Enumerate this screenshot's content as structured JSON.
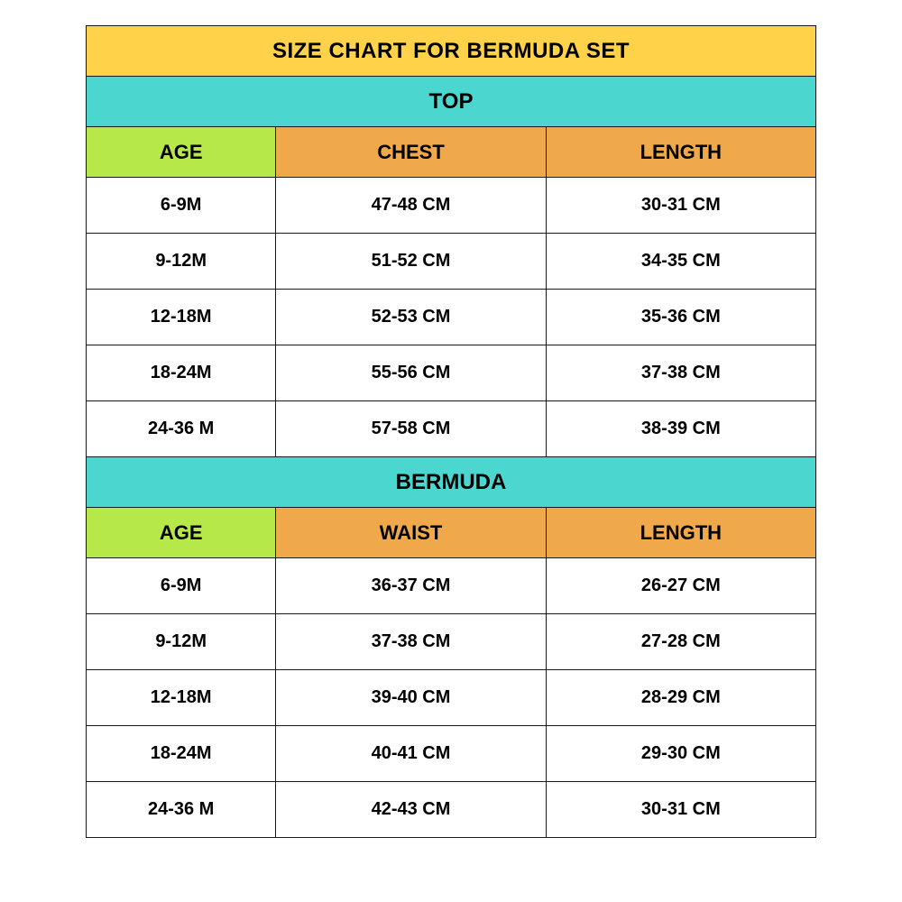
{
  "colors": {
    "title_bg": "#ffd24a",
    "section_bg": "#4cd6d0",
    "hdr_age_bg": "#b7e84a",
    "hdr_meas_bg": "#f0a94a",
    "border": "#1a1a1a",
    "text": "#000000",
    "page_bg": "#ffffff"
  },
  "title": "SIZE CHART FOR BERMUDA SET",
  "sections": [
    {
      "name": "TOP",
      "headers": {
        "age": "AGE",
        "m1": "CHEST",
        "m2": "LENGTH"
      },
      "rows": [
        {
          "age": "6-9M",
          "m1": "47-48 CM",
          "m2": "30-31 CM"
        },
        {
          "age": "9-12M",
          "m1": "51-52 CM",
          "m2": "34-35 CM"
        },
        {
          "age": "12-18M",
          "m1": "52-53 CM",
          "m2": "35-36 CM"
        },
        {
          "age": "18-24M",
          "m1": "55-56 CM",
          "m2": "37-38 CM"
        },
        {
          "age": "24-36 M",
          "m1": "57-58 CM",
          "m2": "38-39 CM"
        }
      ]
    },
    {
      "name": "BERMUDA",
      "headers": {
        "age": "AGE",
        "m1": "WAIST",
        "m2": "LENGTH"
      },
      "rows": [
        {
          "age": "6-9M",
          "m1": "36-37 CM",
          "m2": "26-27 CM"
        },
        {
          "age": "9-12M",
          "m1": "37-38 CM",
          "m2": "27-28 CM"
        },
        {
          "age": "12-18M",
          "m1": "39-40 CM",
          "m2": "28-29 CM"
        },
        {
          "age": "18-24M",
          "m1": "40-41 CM",
          "m2": "29-30 CM"
        },
        {
          "age": "24-36 M",
          "m1": "42-43 CM",
          "m2": "30-31 CM"
        }
      ]
    }
  ]
}
